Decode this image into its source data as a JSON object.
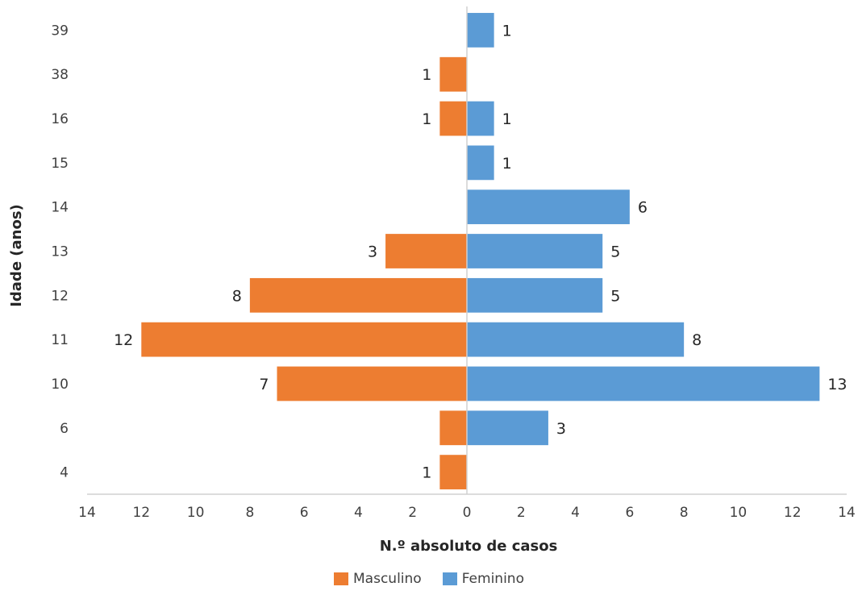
{
  "chart_data": {
    "type": "bar",
    "orientation": "horizontal",
    "subtype": "population-pyramid",
    "categories": [
      "4",
      "6",
      "10",
      "11",
      "12",
      "13",
      "14",
      "15",
      "16",
      "38",
      "39"
    ],
    "series": [
      {
        "name": "Masculino",
        "color": "#ED7D31",
        "values": [
          1,
          1,
          7,
          12,
          8,
          3,
          0,
          0,
          1,
          1,
          0
        ],
        "labels": [
          "1",
          "",
          "7",
          "12",
          "8",
          "3",
          "",
          "",
          "1",
          "1",
          ""
        ]
      },
      {
        "name": "Feminino",
        "color": "#5B9BD5",
        "values": [
          0,
          3,
          13,
          8,
          5,
          5,
          6,
          1,
          1,
          0,
          1
        ],
        "labels": [
          "",
          "3",
          "13",
          "8",
          "5",
          "5",
          "6",
          "1",
          "1",
          "",
          "1"
        ]
      }
    ],
    "xlabel": "N.º absoluto de casos",
    "ylabel": "Idade (anos)",
    "xlim": [
      -14,
      14
    ],
    "xticks": [
      "14",
      "12",
      "10",
      "8",
      "6",
      "4",
      "2",
      "0",
      "2",
      "4",
      "6",
      "8",
      "10",
      "12",
      "14"
    ],
    "grid": false,
    "legend_position": "bottom"
  }
}
